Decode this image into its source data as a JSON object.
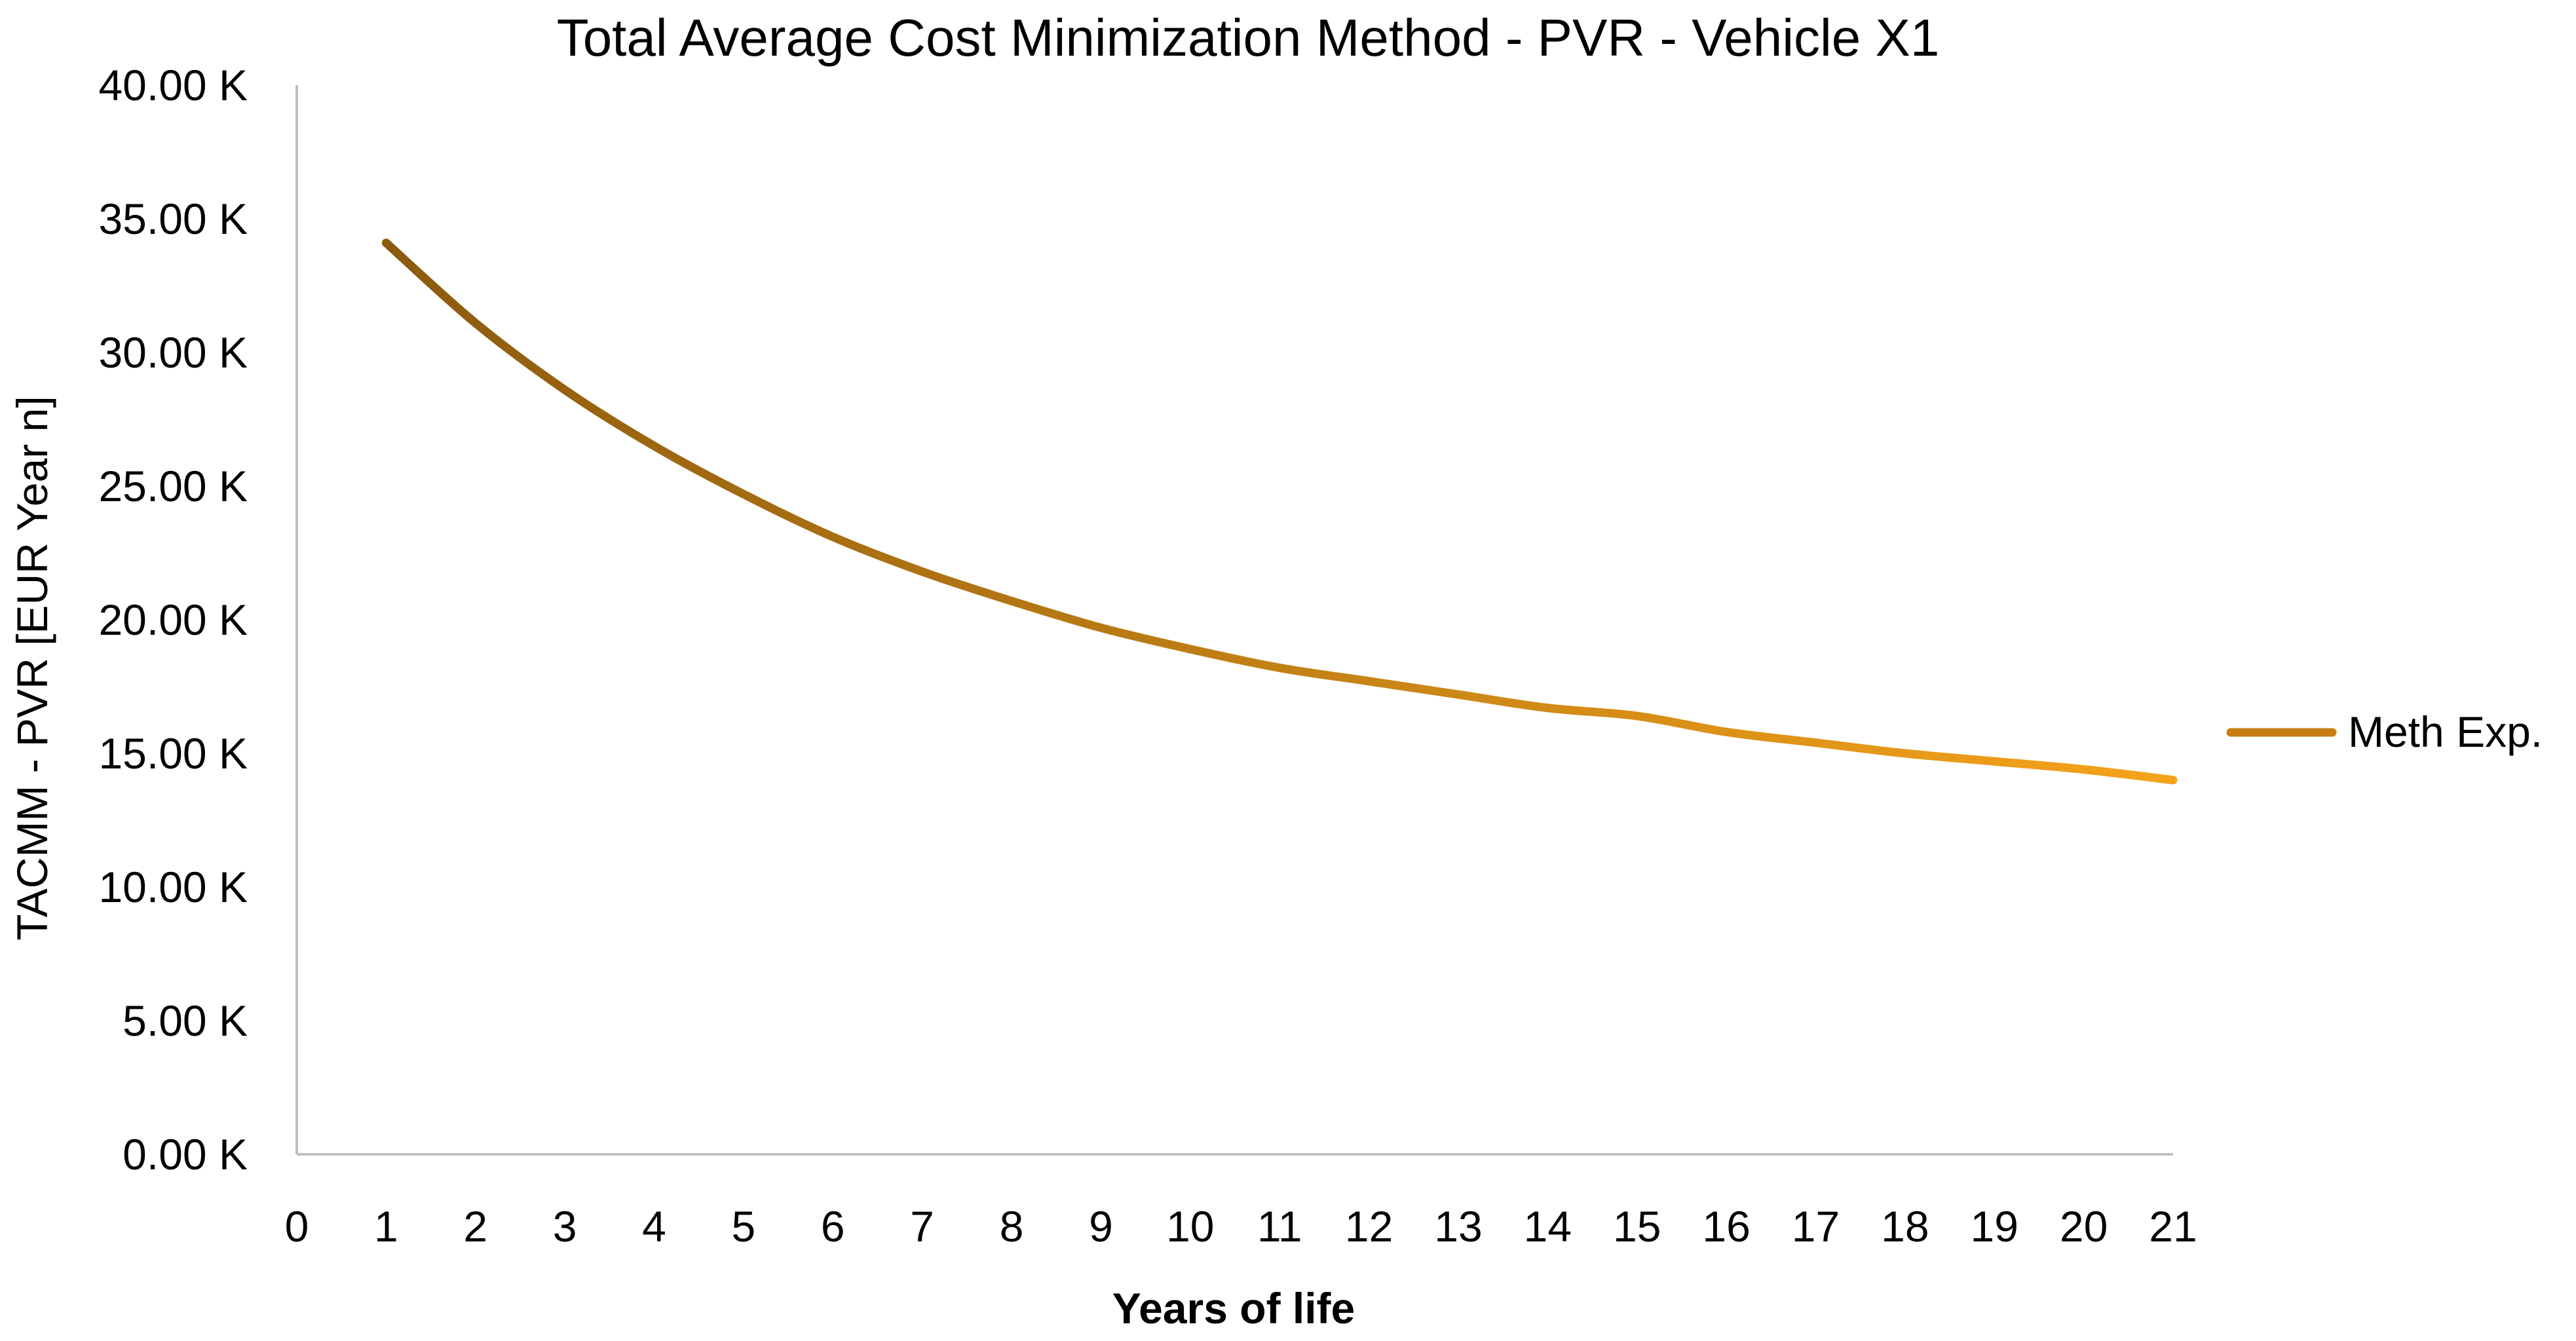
{
  "chart_data": {
    "type": "line",
    "title": "Total Average Cost Minimization Method - PVR - Vehicle X1",
    "xlabel": "Years of life",
    "ylabel": "TACMM - PVR [EUR Year n]",
    "xlim": [
      0,
      21
    ],
    "ylim": [
      0,
      40000
    ],
    "x_ticks": [
      "0",
      "1",
      "2",
      "3",
      "4",
      "5",
      "6",
      "7",
      "8",
      "9",
      "10",
      "11",
      "12",
      "13",
      "14",
      "15",
      "16",
      "17",
      "18",
      "19",
      "20",
      "21"
    ],
    "y_ticks": [
      "0.00 K",
      "5.00 K",
      "10.00 K",
      "15.00 K",
      "20.00 K",
      "25.00 K",
      "30.00 K",
      "35.00 K",
      "40.00 K"
    ],
    "grid": false,
    "legend_position": "right",
    "series": [
      {
        "name": "Meth Exp.",
        "color_dark": "#8B5A0F",
        "color_light": "#F5A31A",
        "x": [
          1,
          2,
          3,
          4,
          5,
          6,
          7,
          8,
          9,
          10,
          11,
          12,
          13,
          14,
          15,
          16,
          17,
          18,
          19,
          20,
          21
        ],
        "values": [
          34100,
          31100,
          28600,
          26500,
          24700,
          23100,
          21800,
          20700,
          19700,
          18900,
          18200,
          17700,
          17200,
          16700,
          16400,
          15800,
          15400,
          15000,
          14700,
          14400,
          14000
        ]
      }
    ]
  }
}
